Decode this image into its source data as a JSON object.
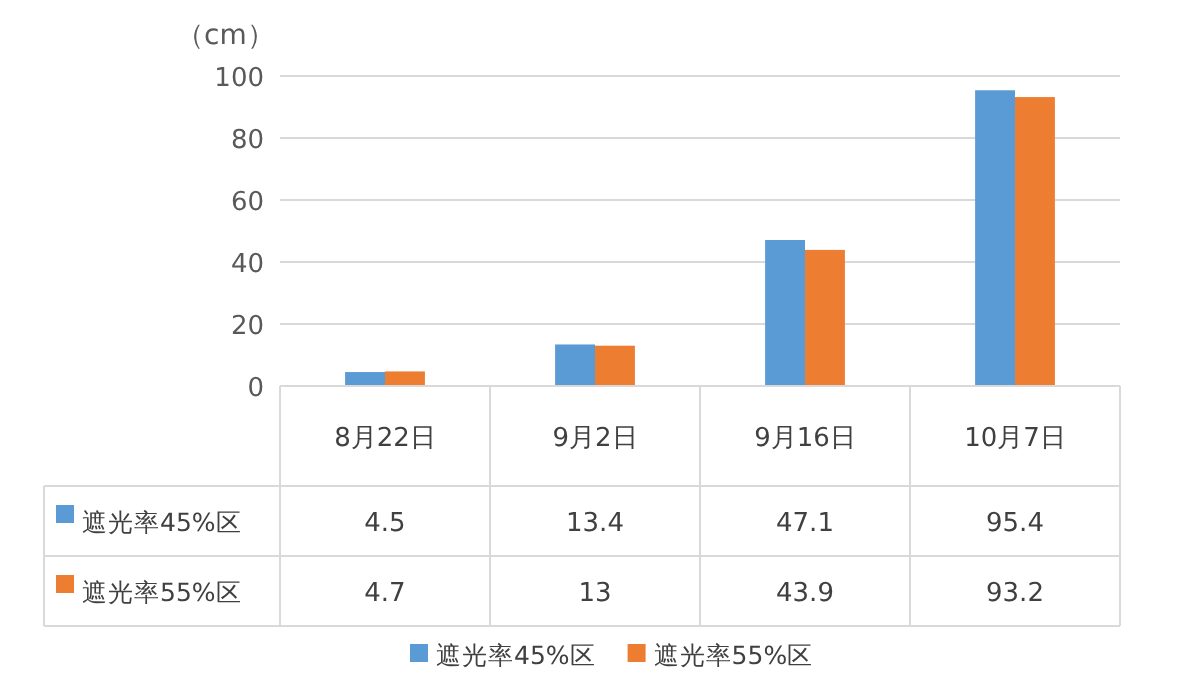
{
  "chart_data": {
    "type": "bar",
    "ylabel": "（cm）",
    "categories": [
      "8月22日",
      "9月2日",
      "9月16日",
      "10月7日"
    ],
    "series": [
      {
        "name": "遮光率45%区",
        "color": "#5b9bd5",
        "values": [
          4.5,
          13.4,
          47.1,
          95.4
        ]
      },
      {
        "name": "遮光率55%区",
        "color": "#ed7d31",
        "values": [
          4.7,
          13,
          43.9,
          93.2
        ]
      }
    ],
    "ylim": [
      0,
      100
    ],
    "yticks": [
      0,
      20,
      40,
      60,
      80,
      100
    ],
    "grid": "y",
    "legend": "bottom",
    "data_labels": true
  }
}
